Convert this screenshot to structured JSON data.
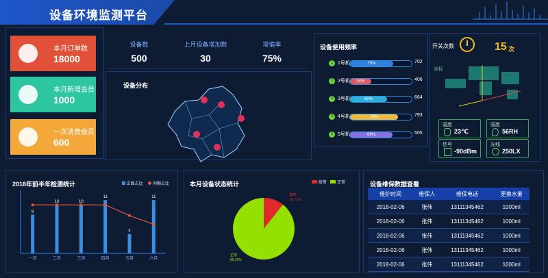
{
  "app": {
    "title": "设备环境监测平台"
  },
  "stat_cards": [
    {
      "label": "本月订单数",
      "value": "18000",
      "color": "#e1513a",
      "icon": "clipboard-icon"
    },
    {
      "label": "本月新增会员",
      "value": "1000",
      "color": "#2ec6a0",
      "icon": "gift-icon"
    },
    {
      "label": "一次消费会员",
      "value": "600",
      "color": "#f4a83a",
      "icon": "money-bag-icon"
    }
  ],
  "kpis": [
    {
      "label": "设备数",
      "value": "500"
    },
    {
      "label": "上月设备增加数",
      "value": "30"
    },
    {
      "label": "增值率",
      "value": "75%"
    }
  ],
  "map": {
    "title": "设备分布"
  },
  "usage": {
    "title": "设备使用频率",
    "rows": [
      {
        "idx": "1",
        "name": "1号机",
        "pct": "70%",
        "value": "702",
        "fraction": 0.7,
        "color": "#2f7fdc"
      },
      {
        "idx": "2",
        "name": "2号机",
        "pct": "34%",
        "value": "406",
        "fraction": 0.34,
        "color": "#e05a6a"
      },
      {
        "idx": "3",
        "name": "3号机",
        "pct": "60%",
        "value": "664",
        "fraction": 0.6,
        "color": "#2fb0dc"
      },
      {
        "idx": "4",
        "name": "4号机",
        "pct": "78%",
        "value": "793",
        "fraction": 0.78,
        "color": "#f0b93a"
      },
      {
        "idx": "5",
        "name": "5号机",
        "pct": "69%",
        "value": "505",
        "fraction": 0.69,
        "color": "#8a6fe0"
      }
    ]
  },
  "switch": {
    "label": "开关次数",
    "value": "15",
    "unit": "次"
  },
  "globe": {
    "label": "坐标"
  },
  "env": [
    {
      "label": "温度",
      "value": "23℃",
      "icon": "thermometer-icon"
    },
    {
      "label": "湿度",
      "value": "56RH",
      "icon": "droplet-icon"
    },
    {
      "label": "信号",
      "value": "-90dBm",
      "icon": "signal-icon"
    },
    {
      "label": "光线",
      "value": "250LX",
      "icon": "sun-icon"
    }
  ],
  "inspection": {
    "title": "2018年前半年检测统计",
    "legend": [
      "正面占比",
      "同期占比"
    ],
    "chart_data": {
      "type": "bar",
      "title": "2018年前半年检测统计",
      "categories": [
        "一月",
        "二月",
        "三月",
        "四月",
        "五月",
        "六月"
      ],
      "series": [
        {
          "name": "正面占比",
          "type": "bar",
          "values": [
            8,
            10,
            10,
            11,
            4,
            11
          ]
        },
        {
          "name": "同期占比",
          "type": "line",
          "values": [
            10,
            10,
            10,
            10,
            7.8,
            6
          ]
        }
      ],
      "ylim": [
        0,
        13
      ]
    }
  },
  "status": {
    "title": "本月设备状态统计",
    "legend": [
      "故障",
      "正常"
    ],
    "chart_data": {
      "type": "pie",
      "title": "本月设备状态统计",
      "labels": [
        "故障",
        "正常"
      ],
      "values": [
        10.71,
        89.29
      ],
      "colors": [
        "#e02a2a",
        "#94e000"
      ]
    },
    "slice_labels": [
      {
        "name": "故障",
        "pct": "10.71%"
      },
      {
        "name": "正常",
        "pct": "89.29%"
      }
    ]
  },
  "maintenance": {
    "title": "设备维保数据查看",
    "headers": [
      "维护时间",
      "维保人",
      "维保电话",
      "更换水量"
    ],
    "rows": [
      [
        "2018-02-06",
        "张伟",
        "13111345462",
        "1000ml"
      ],
      [
        "2018-02-06",
        "张伟",
        "13111345462",
        "1000ml"
      ],
      [
        "2018-02-06",
        "张伟",
        "13111345462",
        "1000ml"
      ],
      [
        "2018-02-06",
        "张伟",
        "13111345462",
        "1000ml"
      ],
      [
        "2018-02-06",
        "张伟",
        "13111345462",
        "1000ml"
      ]
    ]
  }
}
